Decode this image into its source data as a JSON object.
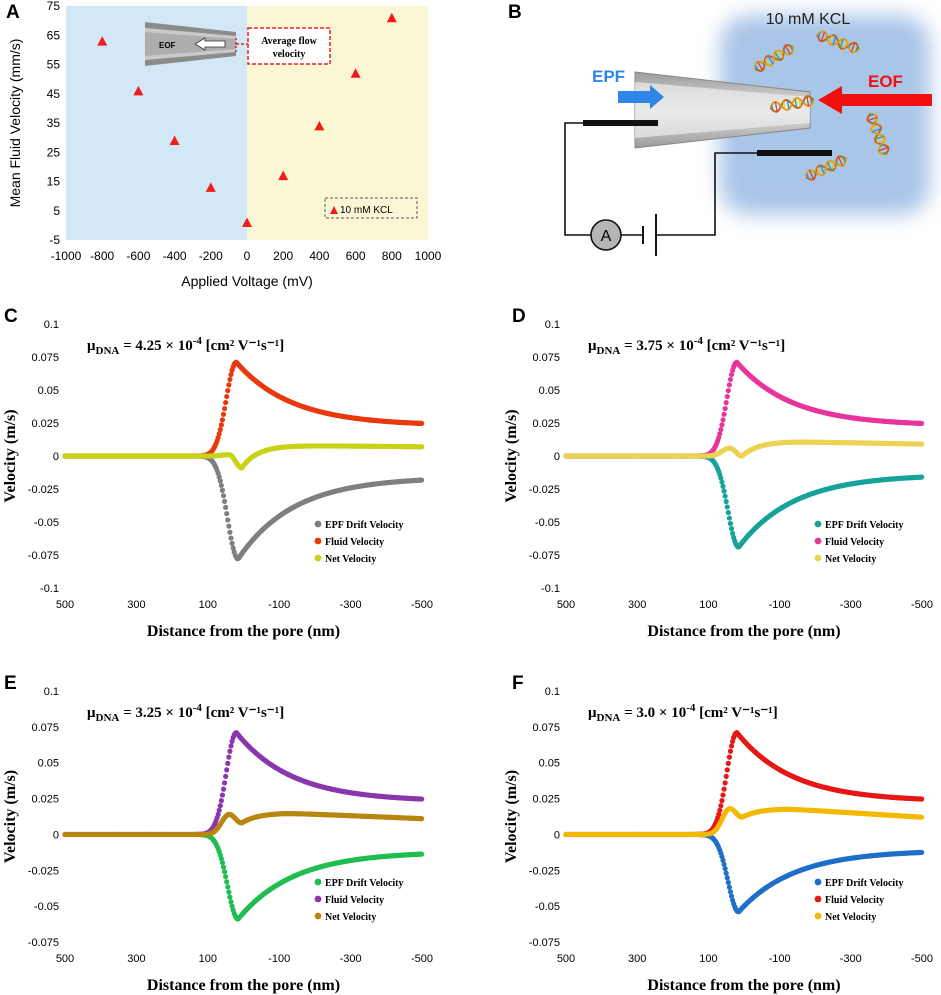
{
  "panel_labels": {
    "A": "A",
    "B": "B",
    "C": "C",
    "D": "D",
    "E": "E",
    "F": "F"
  },
  "panel_a": {
    "inset_eof": "EOF",
    "inset_callout_line1": "Average flow",
    "inset_callout_line2": "velocity"
  },
  "panel_b": {
    "solution": "10 mM KCL",
    "epf": "EPF",
    "eof": "EOF",
    "ammeter": "A"
  },
  "colors": {
    "neg_region": "#d3e8f6",
    "pos_region": "#fbf7d4",
    "marker": "#ee1c1c",
    "epf_arrow": "#2f86e8",
    "eof_arrow": "#f01010",
    "solution_bg": "#a9c5e8"
  },
  "chart_data": [
    {
      "id": "A",
      "type": "scatter",
      "title": "",
      "xlabel": "Applied Voltage (mV)",
      "ylabel": "Mean Fluid Velocity (mm/s)",
      "xlim": [
        -1000,
        1000
      ],
      "ylim": [
        -5,
        75
      ],
      "xticks": [
        -1000,
        -800,
        -600,
        -400,
        -200,
        0,
        200,
        400,
        600,
        800,
        1000
      ],
      "yticks": [
        -5,
        5,
        15,
        25,
        35,
        45,
        55,
        65,
        75
      ],
      "xtick_labels": [
        "-1000",
        "-800",
        "-600",
        "-400",
        "-200",
        "0",
        "200",
        "400",
        "600",
        "800",
        "1000"
      ],
      "ytick_labels": [
        "-5",
        "5",
        "15",
        "25",
        "35",
        "45",
        "55",
        "65",
        "75"
      ],
      "series": [
        {
          "name": "10 mM KCL",
          "x": [
            -800,
            -600,
            -400,
            -200,
            0,
            200,
            400,
            600,
            800
          ],
          "y": [
            63,
            46,
            29,
            13,
            1,
            17,
            34,
            52,
            71
          ]
        }
      ]
    },
    {
      "id": "C",
      "type": "line",
      "mu_prefix": "μ",
      "mu_sub": "DNA",
      "mu_value": " = 4.25 × 10",
      "mu_exp": "-4",
      "mu_units": " [cm² V⁻¹s⁻¹]",
      "xlabel": "Distance from the pore (nm)",
      "ylabel": "Velocity (m/s)",
      "xlim": [
        500,
        -500
      ],
      "ylim": [
        -0.1,
        0.1
      ],
      "xticks": [
        500,
        300,
        100,
        -100,
        -300,
        -500
      ],
      "xtick_labels": [
        "500",
        "300",
        "100",
        "-100",
        "-300",
        "-500"
      ],
      "yticks": [
        -0.1,
        -0.075,
        -0.05,
        -0.025,
        0,
        0.025,
        0.05,
        0.075,
        0.1
      ],
      "ytick_labels": [
        "-0.1",
        "-0.075",
        "-0.05",
        "-0.025",
        "0",
        "0.025",
        "0.05",
        "0.075",
        "0.1"
      ],
      "series": [
        {
          "name": "EPF Drift Velocity",
          "color": "#7f7f7f",
          "kind": "epf",
          "peak_x": 15,
          "peak": -0.078,
          "end": -0.016
        },
        {
          "name": "Fluid Velocity",
          "color": "#e8380d",
          "kind": "fluid",
          "peak_x": 20,
          "peak": 0.071,
          "end": 0.023
        },
        {
          "name": "Net Velocity",
          "color": "#c8d318",
          "kind": "net",
          "bump_x": 40,
          "bump": 0.001,
          "dip_x": 5,
          "dip": -0.009,
          "plateau": 0.008,
          "end": 0.007
        }
      ]
    },
    {
      "id": "D",
      "type": "line",
      "mu_prefix": "μ",
      "mu_sub": "DNA",
      "mu_value": " = 3.75 × 10",
      "mu_exp": "-4",
      "mu_units": " [cm² V⁻¹s⁻¹]",
      "xlabel": "Distance from the pore (nm)",
      "ylabel": "Velocity (m/s)",
      "xlim": [
        500,
        -500
      ],
      "ylim": [
        -0.1,
        0.1
      ],
      "xticks": [
        500,
        300,
        100,
        -100,
        -300,
        -500
      ],
      "xtick_labels": [
        "500",
        "300",
        "100",
        "-100",
        "-300",
        "-500"
      ],
      "yticks": [
        -0.1,
        -0.075,
        -0.05,
        -0.025,
        0,
        0.025,
        0.05,
        0.075,
        0.1
      ],
      "ytick_labels": [
        "-0.1",
        "-0.075",
        "-0.05",
        "-0.025",
        "0",
        "0.025",
        "0.05",
        "0.075",
        "0.1"
      ],
      "series": [
        {
          "name": "EPF Drift Velocity",
          "color": "#17a39a",
          "kind": "epf",
          "peak_x": 15,
          "peak": -0.069,
          "end": -0.014
        },
        {
          "name": "Fluid Velocity",
          "color": "#e8359b",
          "kind": "fluid",
          "peak_x": 20,
          "peak": 0.071,
          "end": 0.023
        },
        {
          "name": "Net Velocity",
          "color": "#ecd251",
          "kind": "net",
          "bump_x": 40,
          "bump": 0.006,
          "dip_x": 5,
          "dip": 0.0,
          "plateau": 0.011,
          "end": 0.009
        }
      ]
    },
    {
      "id": "E",
      "type": "line",
      "mu_prefix": "μ",
      "mu_sub": "DNA",
      "mu_value": " = 3.25 × 10",
      "mu_exp": "-4",
      "mu_units": " [cm² V⁻¹s⁻¹]",
      "xlabel": "Distance from the pore (nm)",
      "ylabel": "Velocity (m/s)",
      "xlim": [
        500,
        -500
      ],
      "ylim": [
        -0.075,
        0.1
      ],
      "xticks": [
        500,
        300,
        100,
        -100,
        -300,
        -500
      ],
      "xtick_labels": [
        "500",
        "300",
        "100",
        "-100",
        "-300",
        "-500"
      ],
      "yticks": [
        -0.075,
        -0.05,
        -0.025,
        0,
        0.025,
        0.05,
        0.075,
        0.1
      ],
      "ytick_labels": [
        "-0.075",
        "-0.05",
        "-0.025",
        "0",
        "0.025",
        "0.05",
        "0.075",
        "0.1"
      ],
      "series": [
        {
          "name": "EPF Drift Velocity",
          "color": "#1fbe50",
          "kind": "epf",
          "peak_x": 15,
          "peak": -0.059,
          "end": -0.012
        },
        {
          "name": "Fluid Velocity",
          "color": "#8a36ad",
          "kind": "fluid",
          "peak_x": 20,
          "peak": 0.071,
          "end": 0.023
        },
        {
          "name": "Net Velocity",
          "color": "#b8860f",
          "kind": "net",
          "bump_x": 40,
          "bump": 0.014,
          "dip_x": 5,
          "dip": 0.008,
          "plateau": 0.015,
          "end": 0.011
        }
      ]
    },
    {
      "id": "F",
      "type": "line",
      "mu_prefix": "μ",
      "mu_sub": "DNA",
      "mu_value": " = 3.0 × 10",
      "mu_exp": "-4",
      "mu_units": " [cm² V⁻¹s⁻¹]",
      "xlabel": "Distance from the pore (nm)",
      "ylabel": "Velocity (m/s)",
      "xlim": [
        500,
        -500
      ],
      "ylim": [
        -0.075,
        0.1
      ],
      "xticks": [
        500,
        300,
        100,
        -100,
        -300,
        -500
      ],
      "xtick_labels": [
        "500",
        "300",
        "100",
        "-100",
        "-300",
        "-500"
      ],
      "yticks": [
        -0.075,
        -0.05,
        -0.025,
        0,
        0.025,
        0.05,
        0.075,
        0.1
      ],
      "ytick_labels": [
        "-0.075",
        "-0.05",
        "-0.025",
        "0",
        "0.025",
        "0.05",
        "0.075",
        "0.1"
      ],
      "series": [
        {
          "name": "EPF Drift Velocity",
          "color": "#1f6fc8",
          "kind": "epf",
          "peak_x": 15,
          "peak": -0.054,
          "end": -0.011
        },
        {
          "name": "Fluid Velocity",
          "color": "#e81616",
          "kind": "fluid",
          "peak_x": 20,
          "peak": 0.071,
          "end": 0.023
        },
        {
          "name": "Net Velocity",
          "color": "#f5b800",
          "kind": "net",
          "bump_x": 40,
          "bump": 0.018,
          "dip_x": 5,
          "dip": 0.012,
          "plateau": 0.018,
          "end": 0.012
        }
      ]
    }
  ]
}
